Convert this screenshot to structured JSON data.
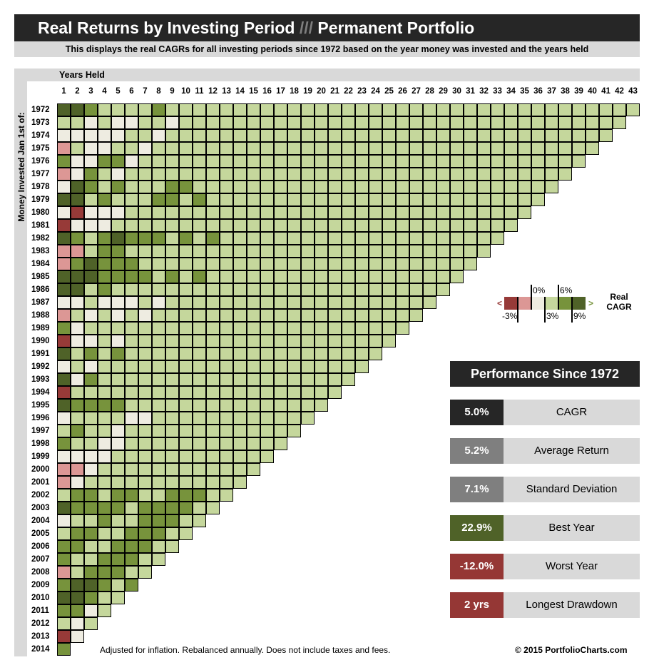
{
  "header": {
    "title_a": "Real Returns by Investing Period",
    "title_sep": "///",
    "title_b": "Permanent Portfolio",
    "subtitle": "This displays the real CAGRs for all investing periods since 1972 based on the year money was invested and the years held"
  },
  "footer": {
    "note": "Adjusted for inflation.  Rebalanced annually.  Does not include taxes and fees.",
    "copyright": "© 2015 PortfolioCharts.com"
  },
  "performance": {
    "title": "Performance Since 1972",
    "items": [
      {
        "value": "5.0%",
        "label": "CAGR",
        "color": "#262626"
      },
      {
        "value": "5.2%",
        "label": "Average Return",
        "color": "#7f7f7f"
      },
      {
        "value": "7.1%",
        "label": "Standard Deviation",
        "color": "#7f7f7f"
      },
      {
        "value": "22.9%",
        "label": "Best Year",
        "color": "#4f6228"
      },
      {
        "value": "-12.0%",
        "label": "Worst Year",
        "color": "#953735"
      },
      {
        "value": "2 yrs",
        "label": "Longest Drawdown",
        "color": "#953735"
      }
    ]
  },
  "chart_data": {
    "type": "heatmap",
    "xlabel": "Years Held",
    "ylabel": "Money Invested Jan 1st of:",
    "x_start": 1,
    "x_end": 43,
    "y_start": 1972,
    "y_end": 2014,
    "legend": {
      "title": "Real CAGR",
      "less": "<",
      "more": ">",
      "thresholds": [
        "-3%",
        "0%",
        "3%",
        "6%",
        "9%"
      ],
      "bins": [
        {
          "code": "R",
          "range": "< -3%",
          "color": "#973a38"
        },
        {
          "code": "P",
          "range": "-3% to 0%",
          "color": "#dc9795"
        },
        {
          "code": "W",
          "range": "0% to 3%",
          "color": "#eeece1"
        },
        {
          "code": "L",
          "range": "3% to 6%",
          "color": "#c5d79c"
        },
        {
          "code": "M",
          "range": "6% to 9%",
          "color": "#77933c"
        },
        {
          "code": "D",
          "range": "> 9%",
          "color": "#4f6228"
        }
      ]
    },
    "rows_note": "each row: code per years held, starting at 1",
    "rows": {
      "1972": "DDMLLLLMLLLL",
      "1973": "LLWLWWLLWLLL",
      "1974": "WWWWWLLWLLLL",
      "1975": "PLWWLLWL",
      "1976": "MWWMMWLL",
      "1977": "PWMLWLL",
      "1978": "WDMLMLLLMMLL",
      "1979": "DDLMLLLMMLML",
      "1980": "WRWWWL",
      "1981": "RWWWLL",
      "1982": "DMLMDMMMLMLM",
      "1983": "PPLMML",
      "1984": "PMDMMML",
      "1985": "DDDMMMMLMLML",
      "1986": "DDLML",
      "1987": "WWLWWWLWL",
      "1988": "PLWLWLWL",
      "1989": "MWLL",
      "1990": "RWWLWL",
      "1991": "DLMLML",
      "1992": "WLWL",
      "1993": "DWML",
      "1994": "RL",
      "1995": "DMMMML",
      "1996": "WLLLLWWL",
      "1997": "LMLLWL",
      "1998": "MLLWWL",
      "1999": "WWWWL",
      "2000": "PPWL",
      "2001": "PWL",
      "2002": "LMMLMMLLMMMLL",
      "2003": "DMMMMLMMMMLL",
      "2004": "WLLMLLMMMLL",
      "2005": "LMMLLMMMLL",
      "2006": "MMLLMMMLL",
      "2007": "MLLMMMLL",
      "2008": "PLMMMLL",
      "2009": "MDDMLM",
      "2010": "DDMLL",
      "2011": "MMWL",
      "2012": "LWL",
      "2013": "RW",
      "2014": "M"
    },
    "default_code": "L"
  }
}
